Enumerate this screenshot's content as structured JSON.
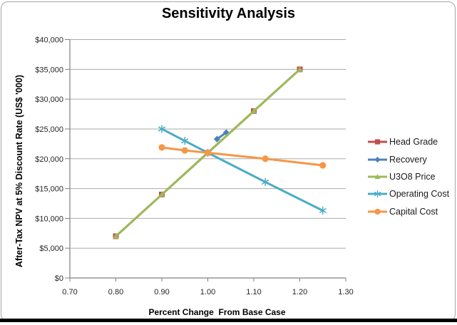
{
  "chart_data": {
    "type": "line",
    "title": "Sensitivity Analysis",
    "xlabel": "Percent Change  From Base Case",
    "ylabel": "After-Tax NPV at 5% Discount Rate (US$ '000)",
    "xlim": [
      0.7,
      1.3
    ],
    "ylim": [
      0,
      40000
    ],
    "x_ticks": [
      0.7,
      0.8,
      0.9,
      1.0,
      1.1,
      1.2,
      1.3
    ],
    "x_tick_labels": [
      "0.70",
      "0.80",
      "0.90",
      "1.00",
      "1.10",
      "1.20",
      "1.30"
    ],
    "y_ticks": [
      0,
      5000,
      10000,
      15000,
      20000,
      25000,
      30000,
      35000,
      40000
    ],
    "y_tick_labels": [
      "$0",
      "$5,000",
      "$10,000",
      "$15,000",
      "$20,000",
      "$25,000",
      "$30,000",
      "$35,000",
      "$40,000"
    ],
    "grid": true,
    "legend_position": "right",
    "base_case": {
      "x": 1.0,
      "npv": 21000
    },
    "series": [
      {
        "name": "Head Grade",
        "color": "#C0504D",
        "marker": "square",
        "x": [
          0.8,
          0.9,
          1.0,
          1.1,
          1.2
        ],
        "values": [
          7000,
          14000,
          21000,
          28000,
          35000
        ]
      },
      {
        "name": "Recovery",
        "color": "#4F81BD",
        "marker": "diamond",
        "x": [
          1.02,
          1.04
        ],
        "values": [
          23300,
          24400
        ]
      },
      {
        "name": "U3O8 Price",
        "color": "#9BBB59",
        "marker": "triangle",
        "x": [
          0.8,
          0.9,
          1.0,
          1.1,
          1.2
        ],
        "values": [
          7000,
          14000,
          21000,
          28000,
          35000
        ]
      },
      {
        "name": "Operating Cost",
        "color": "#4BACC6",
        "marker": "star",
        "x": [
          0.9,
          0.95,
          1.0,
          1.125,
          1.25
        ],
        "values": [
          25000,
          23000,
          21000,
          16100,
          11300
        ]
      },
      {
        "name": "Capital Cost",
        "color": "#F79646",
        "marker": "circle",
        "x": [
          0.9,
          0.95,
          1.0,
          1.125,
          1.25
        ],
        "values": [
          21900,
          21400,
          21000,
          20000,
          18900
        ]
      }
    ],
    "colors": {
      "gridline": "#ababab",
      "axis": "#808080",
      "frame_border": "#a6a6a6",
      "bottom_bar": "#000000",
      "tick_text": "#262626"
    }
  }
}
